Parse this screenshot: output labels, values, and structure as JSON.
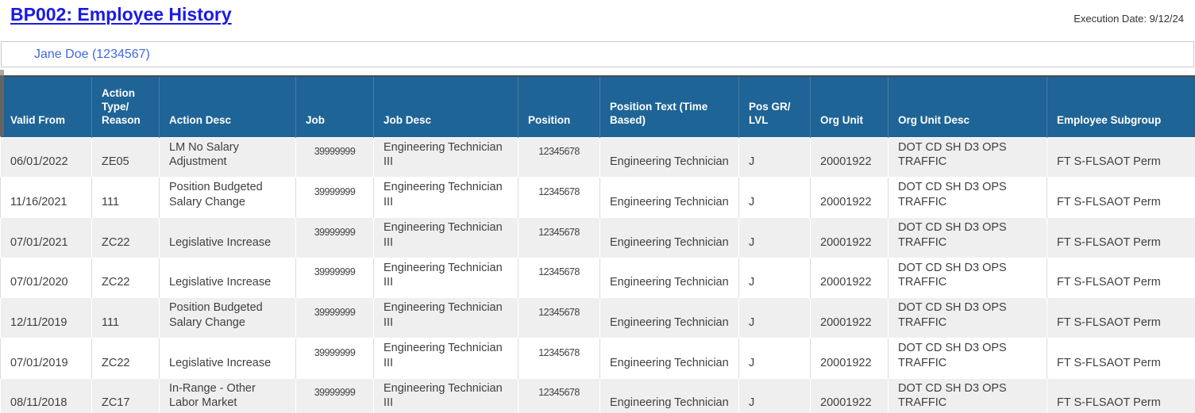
{
  "page": {
    "title": "BP002: Employee History",
    "execution_date": "Execution Date: 9/12/24",
    "employee_selection": "Jane Doe (1234567)"
  },
  "colors": {
    "header_bg": "#1e6496",
    "title_blue": "#1a1ae6",
    "selector_blue": "#4169e1",
    "row_alt": "#efefef"
  },
  "table": {
    "columns": [
      {
        "key": "valid_from",
        "label": "Valid From"
      },
      {
        "key": "action_type",
        "label": "Action Type/ Reason"
      },
      {
        "key": "action_desc",
        "label": "Action Desc"
      },
      {
        "key": "job",
        "label": "Job"
      },
      {
        "key": "job_desc",
        "label": "Job Desc"
      },
      {
        "key": "position",
        "label": "Position"
      },
      {
        "key": "position_text",
        "label": "Position Text (Time Based)"
      },
      {
        "key": "pos_gr_lvl",
        "label": "Pos GR/ LVL"
      },
      {
        "key": "org_unit",
        "label": "Org Unit"
      },
      {
        "key": "org_unit_desc",
        "label": "Org Unit Desc"
      },
      {
        "key": "employee_subgroup",
        "label": "Employee Subgroup"
      }
    ],
    "rows": [
      {
        "valid_from": "06/01/2022",
        "action_type": "ZE05",
        "action_desc": "LM No Salary Adjustment",
        "job": "39999999",
        "job_desc": "Engineering Technician III",
        "position": "12345678",
        "position_text": "Engineering Technician",
        "pos_gr_lvl": "J",
        "org_unit": "20001922",
        "org_unit_desc": "DOT CD SH D3 OPS TRAFFIC",
        "employee_subgroup": "FT S-FLSAOT Perm"
      },
      {
        "valid_from": "11/16/2021",
        "action_type": "111",
        "action_desc": "Position Budgeted Salary Change",
        "job": "39999999",
        "job_desc": "Engineering Technician III",
        "position": "12345678",
        "position_text": "Engineering Technician",
        "pos_gr_lvl": "J",
        "org_unit": "20001922",
        "org_unit_desc": "DOT CD SH D3 OPS TRAFFIC",
        "employee_subgroup": "FT S-FLSAOT Perm"
      },
      {
        "valid_from": "07/01/2021",
        "action_type": "ZC22",
        "action_desc": "Legislative Increase",
        "job": "39999999",
        "job_desc": "Engineering Technician III",
        "position": "12345678",
        "position_text": "Engineering Technician",
        "pos_gr_lvl": "J",
        "org_unit": "20001922",
        "org_unit_desc": "DOT CD SH D3 OPS TRAFFIC",
        "employee_subgroup": "FT S-FLSAOT Perm"
      },
      {
        "valid_from": "07/01/2020",
        "action_type": "ZC22",
        "action_desc": "Legislative Increase",
        "job": "39999999",
        "job_desc": "Engineering Technician III",
        "position": "12345678",
        "position_text": "Engineering Technician",
        "pos_gr_lvl": "J",
        "org_unit": "20001922",
        "org_unit_desc": "DOT CD SH D3 OPS TRAFFIC",
        "employee_subgroup": "FT S-FLSAOT Perm"
      },
      {
        "valid_from": "12/11/2019",
        "action_type": "111",
        "action_desc": "Position Budgeted Salary Change",
        "job": "39999999",
        "job_desc": "Engineering Technician III",
        "position": "12345678",
        "position_text": "Engineering Technician",
        "pos_gr_lvl": "J",
        "org_unit": "20001922",
        "org_unit_desc": "DOT CD SH D3 OPS TRAFFIC",
        "employee_subgroup": "FT S-FLSAOT Perm"
      },
      {
        "valid_from": "07/01/2019",
        "action_type": "ZC22",
        "action_desc": "Legislative Increase",
        "job": "39999999",
        "job_desc": "Engineering Technician III",
        "position": "12345678",
        "position_text": "Engineering Technician",
        "pos_gr_lvl": "J",
        "org_unit": "20001922",
        "org_unit_desc": "DOT CD SH D3 OPS TRAFFIC",
        "employee_subgroup": "FT S-FLSAOT Perm"
      },
      {
        "valid_from": "08/11/2018",
        "action_type": "ZC17",
        "action_desc": "In-Range - Other Labor Market",
        "job": "39999999",
        "job_desc": "Engineering Technician III",
        "position": "12345678",
        "position_text": "Engineering Technician",
        "pos_gr_lvl": "J",
        "org_unit": "20001922",
        "org_unit_desc": "DOT CD SH D3 OPS TRAFFIC",
        "employee_subgroup": "FT S-FLSAOT Perm"
      }
    ]
  }
}
